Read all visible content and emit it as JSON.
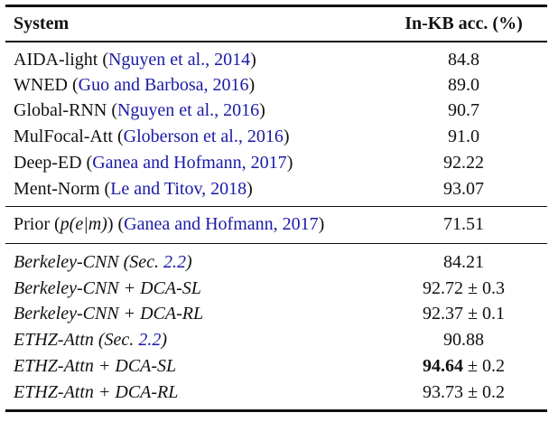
{
  "header": {
    "system": "System",
    "acc": "In-KB acc. (%)"
  },
  "group1": [
    {
      "name": "AIDA-light (",
      "cite": "Nguyen et al., 2014",
      "close": ")",
      "acc": "84.8"
    },
    {
      "name": "WNED (",
      "cite": "Guo and Barbosa, 2016",
      "close": ")",
      "acc": "89.0"
    },
    {
      "name": "Global-RNN (",
      "cite": "Nguyen et al., 2016",
      "close": ")",
      "acc": "90.7"
    },
    {
      "name": "MulFocal-Att (",
      "cite": "Globerson et al., 2016",
      "close": ")",
      "acc": "91.0"
    },
    {
      "name": "Deep-ED (",
      "cite": "Ganea and Hofmann, 2017",
      "close": ")",
      "acc": "92.22"
    },
    {
      "name": "Ment-Norm (",
      "cite": "Le and Titov, 2018",
      "close": ")",
      "acc": "93.07"
    }
  ],
  "prior": {
    "name": "Prior (",
    "formula": "p(e|m)",
    "mid": ") (",
    "cite": "Ganea and Hofmann, 2017",
    "close": ")",
    "acc": "71.51"
  },
  "group3": [
    {
      "pre": "Berkeley-CNN (Sec. ",
      "ref": "2.2",
      "post": ")",
      "acc_main": "84.21",
      "acc_pm": ""
    },
    {
      "pre": "Berkeley-CNN + DCA-SL",
      "ref": "",
      "post": "",
      "acc_main": "92.72",
      "acc_pm": " ± 0.3"
    },
    {
      "pre": "Berkeley-CNN + DCA-RL",
      "ref": "",
      "post": "",
      "acc_main": "92.37",
      "acc_pm": " ± 0.1"
    },
    {
      "pre": "ETHZ-Attn (Sec. ",
      "ref": "2.2",
      "post": ")",
      "acc_main": "90.88",
      "acc_pm": ""
    },
    {
      "pre": "ETHZ-Attn + DCA-SL",
      "ref": "",
      "post": "",
      "acc_main": "94.64",
      "acc_pm": " ± 0.2"
    },
    {
      "pre": "ETHZ-Attn + DCA-RL",
      "ref": "",
      "post": "",
      "acc_main": "93.73",
      "acc_pm": " ± 0.2"
    }
  ],
  "colors": {
    "citation": "#1a1aa6",
    "rule": "#111111"
  }
}
